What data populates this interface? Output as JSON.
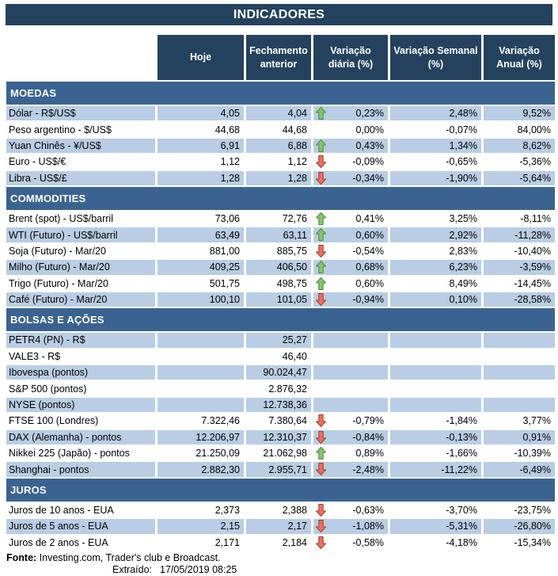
{
  "title": "INDICADORES",
  "columns": [
    "Hoje",
    "Fechamento anterior",
    "Variação diária (%)",
    "Variação Semanal (%)",
    "Variação Anual (%)"
  ],
  "colors": {
    "header_navy": "#24425e",
    "section_band_blue": "#3a6391",
    "stripe_blue": "#b9cde4",
    "up_arrow_fill": "#86c46a",
    "up_arrow_stroke": "#4a8b3b",
    "down_arrow_fill": "#e8715f",
    "down_arrow_stroke": "#a83a28",
    "text": "#000000"
  },
  "icons": {
    "up": "green-up-arrow-icon",
    "down": "red-down-arrow-icon"
  },
  "sections": [
    {
      "name": "MOEDAS",
      "rows": [
        {
          "label": "Dólar - R$/US$",
          "hoje": "4,05",
          "fechamento": "4,04",
          "arrow": "up",
          "var_diaria": "0,23%",
          "var_semanal": "2,48%",
          "var_anual": "9,52%"
        },
        {
          "label": "Peso argentino - $/US$",
          "hoje": "44,68",
          "fechamento": "44,68",
          "arrow": "none",
          "var_diaria": "0,00%",
          "var_semanal": "-0,07%",
          "var_anual": "84,00%"
        },
        {
          "label": "Yuan Chinês - ¥/US$",
          "hoje": "6,91",
          "fechamento": "6,88",
          "arrow": "up",
          "var_diaria": "0,43%",
          "var_semanal": "1,34%",
          "var_anual": "8,62%"
        },
        {
          "label": "Euro - US$/€",
          "hoje": "1,12",
          "fechamento": "1,12",
          "arrow": "down",
          "var_diaria": "-0,09%",
          "var_semanal": "-0,65%",
          "var_anual": "-5,36%"
        },
        {
          "label": "Libra - US$/£",
          "hoje": "1,28",
          "fechamento": "1,28",
          "arrow": "down",
          "var_diaria": "-0,34%",
          "var_semanal": "-1,90%",
          "var_anual": "-5,64%"
        }
      ]
    },
    {
      "name": "COMMODITIES",
      "rows": [
        {
          "label": "Brent (spot) - US$/barril",
          "hoje": "73,06",
          "fechamento": "72,76",
          "arrow": "up",
          "var_diaria": "0,41%",
          "var_semanal": "3,25%",
          "var_anual": "-8,11%"
        },
        {
          "label": "WTI (Futuro) - US$/barril",
          "hoje": "63,49",
          "fechamento": "63,11",
          "arrow": "up",
          "var_diaria": "0,60%",
          "var_semanal": "2,92%",
          "var_anual": "-11,28%"
        },
        {
          "label": "Soja (Futuro) - Mar/20",
          "hoje": "881,00",
          "fechamento": "885,75",
          "arrow": "down",
          "var_diaria": "-0,54%",
          "var_semanal": "2,83%",
          "var_anual": "-10,40%"
        },
        {
          "label": "Milho (Futuro) - Mar/20",
          "hoje": "409,25",
          "fechamento": "406,50",
          "arrow": "up",
          "var_diaria": "0,68%",
          "var_semanal": "6,23%",
          "var_anual": "-3,59%"
        },
        {
          "label": "Trigo (Futuro) - Mar/20",
          "hoje": "501,75",
          "fechamento": "498,75",
          "arrow": "up",
          "var_diaria": "0,60%",
          "var_semanal": "8,49%",
          "var_anual": "-14,45%"
        },
        {
          "label": "Café (Futuro) - Mar/20",
          "hoje": "100,10",
          "fechamento": "101,05",
          "arrow": "down",
          "var_diaria": "-0,94%",
          "var_semanal": "0,10%",
          "var_anual": "-28,58%"
        }
      ]
    },
    {
      "name": "BOLSAS E AÇÕES",
      "rows": [
        {
          "label": "PETR4 (PN) - R$",
          "hoje": "",
          "fechamento": "25,27",
          "arrow": "none",
          "var_diaria": "",
          "var_semanal": "",
          "var_anual": ""
        },
        {
          "label": "VALE3 - R$",
          "hoje": "",
          "fechamento": "46,40",
          "arrow": "none",
          "var_diaria": "",
          "var_semanal": "",
          "var_anual": ""
        },
        {
          "label": "Ibovespa (pontos)",
          "hoje": "",
          "fechamento": "90.024,47",
          "arrow": "none",
          "var_diaria": "",
          "var_semanal": "",
          "var_anual": ""
        },
        {
          "label": "S&P 500 (pontos)",
          "hoje": "",
          "fechamento": "2.876,32",
          "arrow": "none",
          "var_diaria": "",
          "var_semanal": "",
          "var_anual": ""
        },
        {
          "label": "NYSE (pontos)",
          "hoje": "",
          "fechamento": "12.738,36",
          "arrow": "none",
          "var_diaria": "",
          "var_semanal": "",
          "var_anual": ""
        },
        {
          "label": "FTSE 100 (Londres)",
          "hoje": "7.322,46",
          "fechamento": "7.380,64",
          "arrow": "down",
          "var_diaria": "-0,79%",
          "var_semanal": "-1,84%",
          "var_anual": "3,77%"
        },
        {
          "label": "DAX (Alemanha) - pontos",
          "hoje": "12.206,97",
          "fechamento": "12.310,37",
          "arrow": "down",
          "var_diaria": "-0,84%",
          "var_semanal": "-0,13%",
          "var_anual": "0,91%"
        },
        {
          "label": "Nikkei 225 (Japão) - pontos",
          "hoje": "21.250,09",
          "fechamento": "21.062,98",
          "arrow": "up",
          "var_diaria": "0,89%",
          "var_semanal": "-1,66%",
          "var_anual": "-10,39%"
        },
        {
          "label": "Shanghai - pontos",
          "hoje": "2.882,30",
          "fechamento": "2.955,71",
          "arrow": "down",
          "var_diaria": "-2,48%",
          "var_semanal": "-11,22%",
          "var_anual": "-6,49%"
        }
      ]
    },
    {
      "name": "JUROS",
      "rows": [
        {
          "label": "Juros de 10 anos - EUA",
          "hoje": "2,373",
          "fechamento": "2,388",
          "arrow": "down",
          "var_diaria": "-0,63%",
          "var_semanal": "-3,70%",
          "var_anual": "-23,75%"
        },
        {
          "label": "Juros de 5 anos - EUA",
          "hoje": "2,15",
          "fechamento": "2,17",
          "arrow": "down",
          "var_diaria": "-1,08%",
          "var_semanal": "-5,31%",
          "var_anual": "-26,80%"
        },
        {
          "label": "Juros de 2 anos - EUA",
          "hoje": "2,171",
          "fechamento": "2,184",
          "arrow": "down",
          "var_diaria": "-0,58%",
          "var_semanal": "-4,18%",
          "var_anual": "-15,34%"
        }
      ]
    }
  ],
  "footer": {
    "fonte_label": "Fonte:",
    "fonte_text": " Investing.com, Trader's club e Broadcast.",
    "extraido_label": "Extraído:",
    "extraido_value": "17/05/2019 08:25"
  }
}
